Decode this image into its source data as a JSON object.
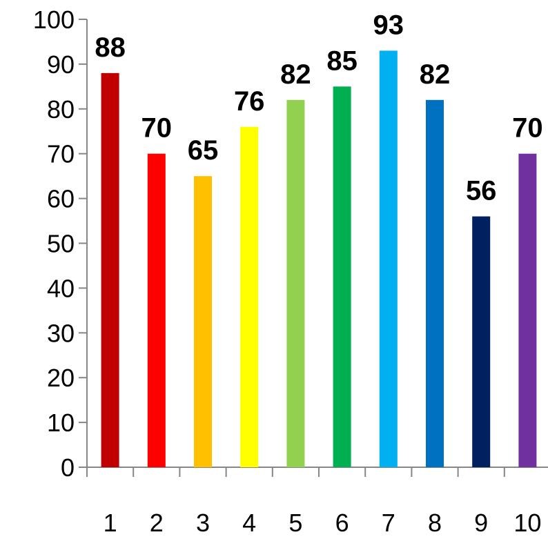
{
  "chart_data": {
    "type": "bar",
    "categories": [
      "1",
      "2",
      "3",
      "4",
      "5",
      "6",
      "7",
      "8",
      "9",
      "10"
    ],
    "values": [
      88,
      70,
      65,
      76,
      82,
      85,
      93,
      82,
      56,
      70
    ],
    "colors": [
      "#c00000",
      "#ff0000",
      "#ffc000",
      "#ffff00",
      "#92d050",
      "#00b050",
      "#00b0f0",
      "#0070c0",
      "#002060",
      "#7030a0"
    ],
    "ylim": [
      0,
      100
    ],
    "yticks": [
      "0",
      "10",
      "20",
      "30",
      "40",
      "50",
      "60",
      "70",
      "80",
      "90",
      "100"
    ],
    "grid": false,
    "data_labels": true
  }
}
